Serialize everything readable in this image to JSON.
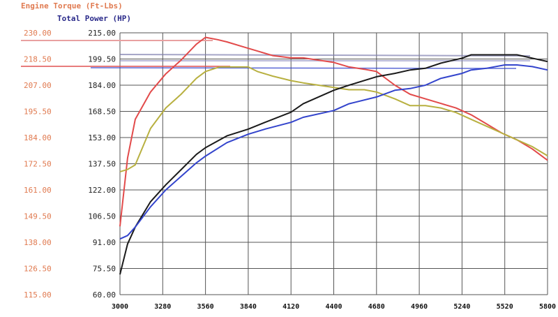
{
  "chart_data": {
    "type": "line",
    "title_left": "Engine Torque (Ft-Lbs)",
    "title_right": "Total Power (HP)",
    "x_ticks": [
      "3000",
      "3280",
      "3560",
      "3840",
      "4120",
      "4400",
      "4680",
      "4960",
      "5240",
      "5520",
      "5800"
    ],
    "xlim": [
      3000,
      5800
    ],
    "left_axis": {
      "label": "Engine Torque (Ft-Lbs)",
      "ticks": [
        "230.00",
        "218.50",
        "207.00",
        "195.50",
        "184.00",
        "172.50",
        "161.00",
        "149.50",
        "138.00",
        "126.50",
        "115.00"
      ],
      "ylim": [
        115,
        230
      ]
    },
    "right_axis": {
      "label": "Total Power (HP)",
      "ticks": [
        "215.00",
        "199.50",
        "184.00",
        "168.50",
        "153.00",
        "137.50",
        "122.00",
        "106.50",
        "91.00",
        "75.50",
        "60.00"
      ],
      "ylim": [
        60,
        215
      ]
    },
    "series": [
      {
        "axis": "left",
        "color": "#e24a4a",
        "x": [
          3000,
          3050,
          3100,
          3200,
          3300,
          3400,
          3500,
          3560,
          3640,
          3700,
          3800,
          3900,
          4000,
          4120,
          4200,
          4300,
          4400,
          4500,
          4600,
          4680,
          4800,
          4900,
          5000,
          5100,
          5200,
          5300,
          5400,
          5500,
          5600,
          5700,
          5800
        ],
        "y": [
          145,
          175,
          192,
          204,
          212,
          218,
          225,
          228,
          227,
          226,
          224,
          222,
          220,
          219,
          219,
          218,
          217,
          215,
          214,
          213,
          207,
          203,
          201,
          199,
          197,
          194,
          190,
          186,
          183,
          179,
          174
        ]
      },
      {
        "axis": "left",
        "color": "#b8b040",
        "x": [
          3000,
          3050,
          3100,
          3200,
          3300,
          3400,
          3500,
          3560,
          3650,
          3760,
          3840,
          3900,
          4000,
          4120,
          4200,
          4300,
          4400,
          4500,
          4600,
          4680,
          4800,
          4900,
          5000,
          5100,
          5200,
          5300,
          5400,
          5500,
          5600,
          5700,
          5800
        ],
        "y": [
          169,
          170,
          172,
          188,
          197,
          203,
          210,
          213,
          215,
          215,
          215,
          213,
          211,
          209,
          208,
          207,
          206,
          205,
          205,
          204,
          201,
          198,
          198,
          197,
          195,
          192,
          189,
          186,
          183,
          180,
          176
        ]
      },
      {
        "axis": "right",
        "color": "#1a1a1a",
        "x": [
          3000,
          3050,
          3100,
          3200,
          3300,
          3400,
          3500,
          3560,
          3700,
          3840,
          3950,
          4120,
          4200,
          4400,
          4500,
          4680,
          4800,
          4900,
          5000,
          5100,
          5240,
          5300,
          5400,
          5520,
          5600,
          5700,
          5800
        ],
        "y": [
          72,
          90,
          100,
          115,
          125,
          134,
          143,
          147,
          154,
          158,
          162,
          168,
          173,
          181,
          184,
          189,
          191,
          193,
          194,
          197,
          200,
          202,
          202,
          202,
          202,
          200,
          198
        ]
      },
      {
        "axis": "right",
        "color": "#3344cc",
        "x": [
          3000,
          3050,
          3100,
          3200,
          3300,
          3400,
          3500,
          3560,
          3700,
          3840,
          3950,
          4120,
          4200,
          4400,
          4500,
          4680,
          4800,
          4900,
          5000,
          5100,
          5240,
          5300,
          5400,
          5520,
          5600,
          5700,
          5800
        ],
        "y": [
          93,
          95,
          100,
          112,
          122,
          130,
          138,
          142,
          150,
          155,
          158,
          162,
          165,
          169,
          173,
          177,
          181,
          182,
          184,
          188,
          191,
          193,
          194,
          196,
          196,
          195,
          193
        ]
      }
    ]
  }
}
